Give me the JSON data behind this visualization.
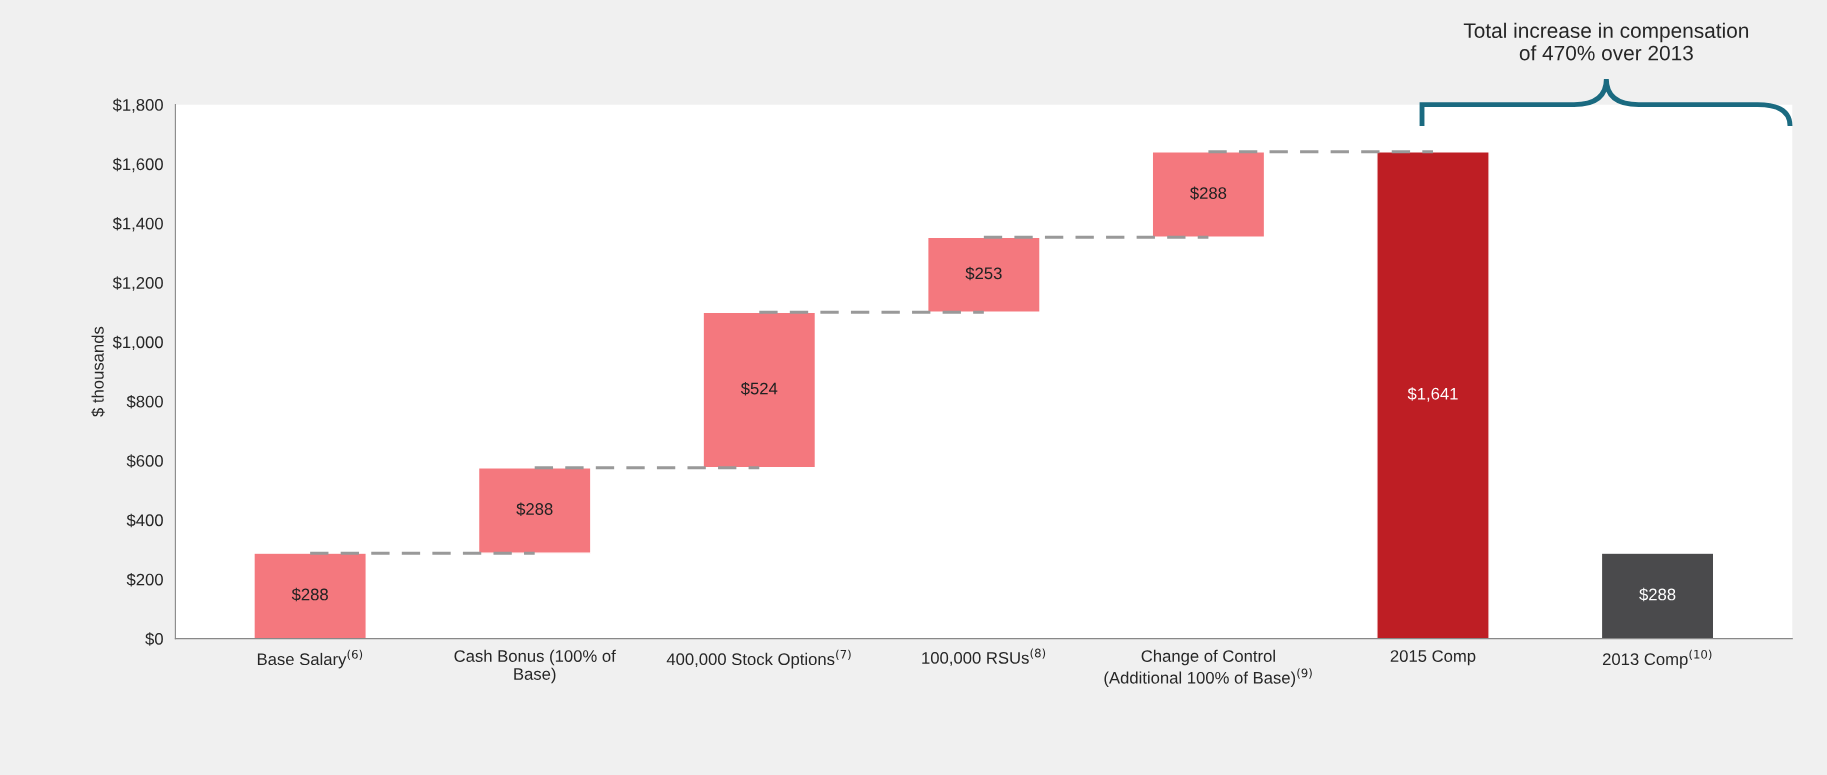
{
  "chart_data": {
    "type": "bar",
    "ylabel": "$ thousands",
    "categories": [
      "Base Salary$^{(6)}$",
      "Cash Bonus (100% of\nBase)",
      "400,000 Stock Options$^{(7)}$",
      "100,000 RSUs$^{(8)}$",
      "Change of Control\n(Additional 100% of Base)$^{(9)}$",
      "2015 Comp",
      "2013 Comp$^{(10)}$"
    ],
    "values": [
      288,
      288,
      524,
      253,
      288,
      1641,
      288
    ],
    "base": [
      0,
      288,
      576,
      1100,
      1353,
      0,
      0
    ],
    "colors": [
      "#f4787e",
      "#f4787e",
      "#f4787e",
      "#f4787e",
      "#f4787e",
      "#be1e24",
      "#4a4a4c"
    ],
    "value_labels": [
      "$288",
      "$288",
      "$524",
      "$253",
      "$288",
      "$1,641",
      "$288"
    ],
    "ylim": [
      0,
      1800
    ],
    "yticks": [
      {
        "value": 0,
        "label": "$0"
      },
      {
        "value": 200,
        "label": "$200"
      },
      {
        "value": 400,
        "label": "$400"
      },
      {
        "value": 600,
        "label": "$600"
      },
      {
        "value": 800,
        "label": "$800"
      },
      {
        "value": 1000,
        "label": "$1,000"
      },
      {
        "value": 1200,
        "label": "$1,200"
      },
      {
        "value": 1400,
        "label": "$1,400"
      },
      {
        "value": 1600,
        "label": "$1,600"
      },
      {
        "value": 1800,
        "label": "$1,800"
      }
    ],
    "series": [
      {
        "type": "line",
        "color": "#999999",
        "line_style": "dashed",
        "values": [
          288,
          288,
          null,
          null,
          null,
          null,
          null
        ]
      },
      {
        "type": "line",
        "color": "#999999",
        "line_style": "dashed",
        "values": [
          null,
          576,
          576,
          null,
          null,
          null,
          null
        ]
      },
      {
        "type": "line",
        "color": "#999999",
        "line_style": "dashed",
        "values": [
          null,
          null,
          1100,
          1100,
          null,
          null,
          null
        ]
      },
      {
        "type": "line",
        "color": "#999999",
        "line_style": "dashed",
        "values": [
          null,
          null,
          null,
          1353,
          1353,
          null,
          null
        ]
      },
      {
        "type": "line",
        "color": "#999999",
        "line_style": "dashed",
        "values": [
          null,
          null,
          null,
          null,
          1641,
          1641,
          null
        ]
      }
    ],
    "grid": false,
    "legend": false,
    "annotations": [
      "Total increase in compensation\nof 470% over 2013"
    ]
  }
}
